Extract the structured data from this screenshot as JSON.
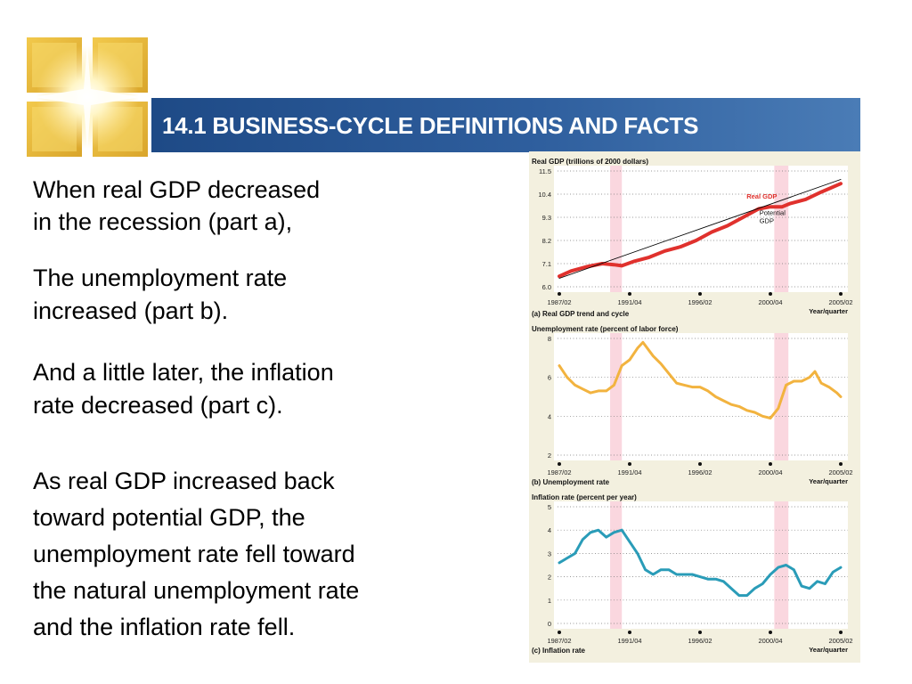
{
  "slide": {
    "title": "14.1 BUSINESS-CYCLE DEFINITIONS AND FACTS",
    "paragraphs": [
      [
        "When real GDP decreased",
        "in the recession (part a),"
      ],
      [
        "The unemployment rate",
        "increased (part b)."
      ],
      [
        "And a little later, the inflation",
        "rate decreased (part c)."
      ],
      [
        "As real GDP increased back",
        "toward potential GDP, the",
        "unemployment rate fell toward",
        "the natural unemployment rate",
        "and the inflation rate fell."
      ]
    ]
  },
  "colors": {
    "title_bar": "#2c5a99",
    "figure_bg": "#f3f0df",
    "recession_band": "#f9d3dc",
    "real_gdp": "#e0312d",
    "potential_gdp": "#000000",
    "unemployment": "#f2b33f",
    "inflation": "#2a9cb8"
  },
  "chart_data": [
    {
      "type": "line",
      "title": "Real GDP (trillions of 2000 dollars)",
      "caption": "(a) Real GDP trend and cycle",
      "xlabel": "Year/quarter",
      "x_ticks": [
        "1987/02",
        "1991/04",
        "1996/02",
        "2000/04",
        "2005/02"
      ],
      "xlim": [
        1987.25,
        2005.25
      ],
      "y_ticks": [
        "6.0",
        "7.1",
        "8.2",
        "9.3",
        "10.4",
        "11.5"
      ],
      "ylim": [
        6.0,
        11.5
      ],
      "grid": "horizontal dotted",
      "recessions": [
        [
          1990.5,
          1991.25
        ],
        [
          2001.0,
          2001.9
        ]
      ],
      "series": [
        {
          "name": "Real GDP",
          "x": [
            1987.25,
            1988,
            1989,
            1990,
            1990.75,
            1991.25,
            1992,
            1993,
            1994,
            1995,
            1996,
            1997,
            1998,
            1999,
            2000,
            2000.75,
            2001.5,
            2002,
            2003,
            2004,
            2005.25
          ],
          "values": [
            6.5,
            6.75,
            6.95,
            7.1,
            7.05,
            7.0,
            7.2,
            7.4,
            7.7,
            7.9,
            8.2,
            8.6,
            8.9,
            9.3,
            9.7,
            9.8,
            9.8,
            9.95,
            10.15,
            10.5,
            10.9
          ]
        },
        {
          "name": "Potential GDP",
          "x": [
            1987.25,
            2005.25
          ],
          "values": [
            6.4,
            11.1
          ]
        }
      ]
    },
    {
      "type": "line",
      "title": "Unemployment rate (percent of labor force)",
      "caption": "(b) Unemployment rate",
      "xlabel": "Year/quarter",
      "x_ticks": [
        "1987/02",
        "1991/04",
        "1996/02",
        "2000/04",
        "2005/02"
      ],
      "xlim": [
        1987.25,
        2005.25
      ],
      "y_ticks": [
        "2",
        "4",
        "6",
        "8"
      ],
      "ylim": [
        2,
        8
      ],
      "grid": "horizontal dotted",
      "recessions": [
        [
          1990.5,
          1991.25
        ],
        [
          2001.0,
          2001.9
        ]
      ],
      "series": [
        {
          "name": "",
          "x": [
            1987.25,
            1987.75,
            1988.25,
            1988.75,
            1989.25,
            1989.75,
            1990.25,
            1990.75,
            1991.25,
            1991.75,
            1992.25,
            1992.6,
            1993.25,
            1993.75,
            1994.25,
            1994.75,
            1995.25,
            1995.75,
            1996.25,
            1996.75,
            1997.25,
            1997.75,
            1998.25,
            1998.75,
            1999.25,
            1999.75,
            2000.25,
            2000.75,
            2001.25,
            2001.75,
            2002.25,
            2002.75,
            2003.25,
            2003.6,
            2004.0,
            2004.5,
            2005.0,
            2005.25
          ],
          "values": [
            6.6,
            6.0,
            5.6,
            5.4,
            5.2,
            5.3,
            5.3,
            5.6,
            6.6,
            6.9,
            7.5,
            7.8,
            7.1,
            6.7,
            6.2,
            5.7,
            5.6,
            5.5,
            5.5,
            5.3,
            5.0,
            4.8,
            4.6,
            4.5,
            4.3,
            4.2,
            4.0,
            3.9,
            4.4,
            5.6,
            5.8,
            5.8,
            6.0,
            6.3,
            5.7,
            5.5,
            5.2,
            5.0
          ]
        }
      ]
    },
    {
      "type": "line",
      "title": "Inflation rate (percent per year)",
      "caption": "(c) Inflation rate",
      "xlabel": "Year/quarter",
      "x_ticks": [
        "1987/02",
        "1991/04",
        "1996/02",
        "2000/04",
        "2005/02"
      ],
      "xlim": [
        1987.25,
        2005.25
      ],
      "y_ticks": [
        "0",
        "1",
        "2",
        "3",
        "4",
        "5"
      ],
      "ylim": [
        0,
        5
      ],
      "grid": "horizontal dotted",
      "recessions": [
        [
          1990.5,
          1991.25
        ],
        [
          2001.0,
          2001.9
        ]
      ],
      "series": [
        {
          "name": "",
          "x": [
            1987.25,
            1987.75,
            1988.25,
            1988.75,
            1989.25,
            1989.75,
            1990.25,
            1990.75,
            1991.25,
            1991.75,
            1992.25,
            1992.75,
            1993.25,
            1993.75,
            1994.25,
            1994.75,
            1995.25,
            1995.75,
            1996.25,
            1996.75,
            1997.25,
            1997.75,
            1998.25,
            1998.75,
            1999.25,
            1999.75,
            2000.25,
            2000.75,
            2001.25,
            2001.75,
            2002.25,
            2002.75,
            2003.25,
            2003.75,
            2004.25,
            2004.75,
            2005.25
          ],
          "values": [
            2.6,
            2.8,
            3.0,
            3.6,
            3.9,
            4.0,
            3.7,
            3.9,
            4.0,
            3.5,
            3.0,
            2.3,
            2.1,
            2.3,
            2.3,
            2.1,
            2.1,
            2.1,
            2.0,
            1.9,
            1.9,
            1.8,
            1.5,
            1.2,
            1.2,
            1.5,
            1.7,
            2.1,
            2.4,
            2.5,
            2.3,
            1.6,
            1.5,
            1.8,
            1.7,
            2.2,
            2.4
          ]
        }
      ]
    }
  ],
  "annotations": {
    "real_gdp_label": "Real GDP",
    "potential_gdp_label": [
      "Potential",
      "GDP"
    ]
  }
}
